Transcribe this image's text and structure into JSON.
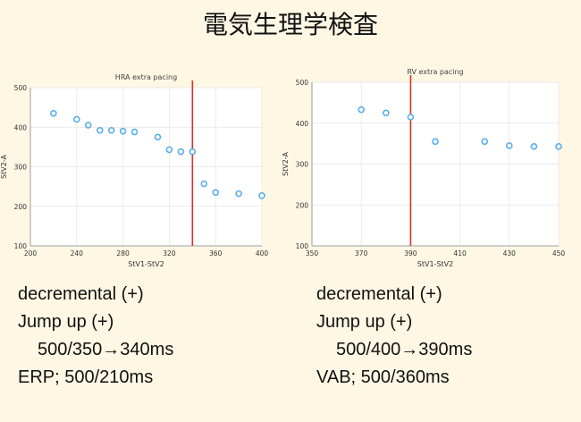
{
  "page_title": "電気生理学検査",
  "chart_data": [
    {
      "type": "scatter",
      "title": "HRA extra pacing",
      "xlabel": "StV1-StV2",
      "ylabel": "StV2-A",
      "xlim": [
        200,
        400
      ],
      "ylim": [
        100,
        500
      ],
      "xticks": [
        200,
        240,
        280,
        320,
        360,
        400
      ],
      "yticks": [
        100,
        200,
        300,
        400,
        500
      ],
      "x": [
        220,
        240,
        250,
        260,
        270,
        280,
        290,
        310,
        320,
        330,
        340,
        350,
        360,
        380,
        400
      ],
      "y": [
        435,
        420,
        405,
        392,
        392,
        390,
        388,
        375,
        343,
        338,
        338,
        257,
        235,
        232,
        227
      ],
      "marker_color": "#5aaee8",
      "vline": {
        "x": 340,
        "color": "#d9302a"
      }
    },
    {
      "type": "scatter",
      "title": "RV extra pacing",
      "xlabel": "StV1-StV2",
      "ylabel": "StV2-A",
      "xlim": [
        350,
        450
      ],
      "ylim": [
        100,
        500
      ],
      "xticks": [
        350,
        370,
        390,
        410,
        430,
        450
      ],
      "yticks": [
        100,
        200,
        300,
        400,
        500
      ],
      "x": [
        370,
        380,
        390,
        400,
        420,
        430,
        440,
        450
      ],
      "y": [
        433,
        425,
        415,
        355,
        355,
        345,
        343,
        343
      ],
      "marker_color": "#5aaee8",
      "vline": {
        "x": 390,
        "color": "#d9302a"
      }
    }
  ],
  "notes_left": {
    "line1": "decremental (+)",
    "line2": "Jump up (+)",
    "line3": "500/350→340ms",
    "line4": "ERP; 500/210ms"
  },
  "notes_right": {
    "line1": "decremental (+)",
    "line2": "Jump up (+)",
    "line3": "500/400→390ms",
    "line4": "VAB; 500/360ms"
  }
}
